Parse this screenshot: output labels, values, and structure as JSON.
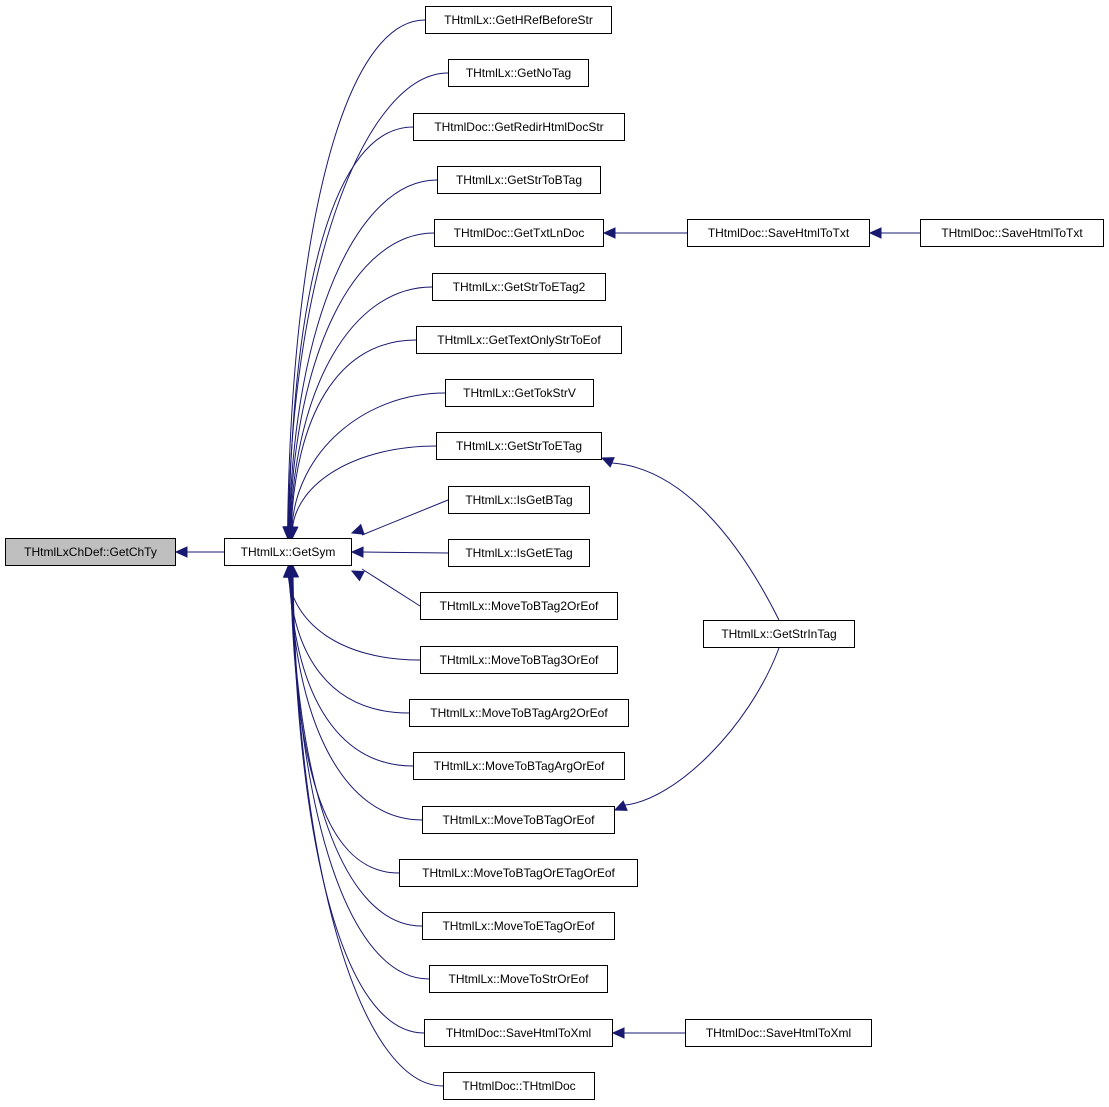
{
  "colors": {
    "edge": "#191970",
    "root_fill": "#bfbfbf",
    "node_fill": "#ffffff"
  },
  "nodes": [
    {
      "id": "root",
      "label": "THtmlLxChDef::GetChTy",
      "highlighted": true
    },
    {
      "id": "getsym",
      "label": "THtmlLx::GetSym"
    },
    {
      "id": "c1",
      "label": "THtmlLx::GetHRefBeforeStr"
    },
    {
      "id": "c2",
      "label": "THtmlLx::GetNoTag"
    },
    {
      "id": "c3",
      "label": "THtmlDoc::GetRedirHtmlDocStr"
    },
    {
      "id": "c4",
      "label": "THtmlLx::GetStrToBTag"
    },
    {
      "id": "c5",
      "label": "THtmlDoc::GetTxtLnDoc"
    },
    {
      "id": "c6",
      "label": "THtmlLx::GetStrToETag2"
    },
    {
      "id": "c7",
      "label": "THtmlLx::GetTextOnlyStrToEof"
    },
    {
      "id": "c8",
      "label": "THtmlLx::GetTokStrV"
    },
    {
      "id": "c9",
      "label": "THtmlLx::GetStrToETag"
    },
    {
      "id": "c10",
      "label": "THtmlLx::IsGetBTag"
    },
    {
      "id": "c11",
      "label": "THtmlLx::IsGetETag"
    },
    {
      "id": "c12",
      "label": "THtmlLx::MoveToBTag2OrEof"
    },
    {
      "id": "c13",
      "label": "THtmlLx::MoveToBTag3OrEof"
    },
    {
      "id": "c14",
      "label": "THtmlLx::MoveToBTagArg2OrEof"
    },
    {
      "id": "c15",
      "label": "THtmlLx::MoveToBTagArgOrEof"
    },
    {
      "id": "c16",
      "label": "THtmlLx::MoveToBTagOrEof"
    },
    {
      "id": "c17",
      "label": "THtmlLx::MoveToBTagOrETagOrEof"
    },
    {
      "id": "c18",
      "label": "THtmlLx::MoveToETagOrEof"
    },
    {
      "id": "c19",
      "label": "THtmlLx::MoveToStrOrEof"
    },
    {
      "id": "c20",
      "label": "THtmlDoc::SaveHtmlToXml"
    },
    {
      "id": "c21",
      "label": "THtmlDoc::THtmlDoc"
    },
    {
      "id": "t1",
      "label": "THtmlDoc::SaveHtmlToTxt"
    },
    {
      "id": "t2",
      "label": "THtmlDoc::SaveHtmlToTxt"
    },
    {
      "id": "g1",
      "label": "THtmlLx::GetStrInTag"
    },
    {
      "id": "x1",
      "label": "THtmlDoc::SaveHtmlToXml"
    }
  ],
  "edges": [
    [
      "getsym",
      "root"
    ],
    [
      "c1",
      "getsym"
    ],
    [
      "c2",
      "getsym"
    ],
    [
      "c3",
      "getsym"
    ],
    [
      "c4",
      "getsym"
    ],
    [
      "c5",
      "getsym"
    ],
    [
      "c6",
      "getsym"
    ],
    [
      "c7",
      "getsym"
    ],
    [
      "c8",
      "getsym"
    ],
    [
      "c9",
      "getsym"
    ],
    [
      "c10",
      "getsym"
    ],
    [
      "c11",
      "getsym"
    ],
    [
      "c12",
      "getsym"
    ],
    [
      "c13",
      "getsym"
    ],
    [
      "c14",
      "getsym"
    ],
    [
      "c15",
      "getsym"
    ],
    [
      "c16",
      "getsym"
    ],
    [
      "c17",
      "getsym"
    ],
    [
      "c18",
      "getsym"
    ],
    [
      "c19",
      "getsym"
    ],
    [
      "c20",
      "getsym"
    ],
    [
      "c21",
      "getsym"
    ],
    [
      "t1",
      "c5"
    ],
    [
      "t2",
      "t1"
    ],
    [
      "g1",
      "c9"
    ],
    [
      "g1",
      "c16"
    ],
    [
      "x1",
      "c20"
    ]
  ]
}
